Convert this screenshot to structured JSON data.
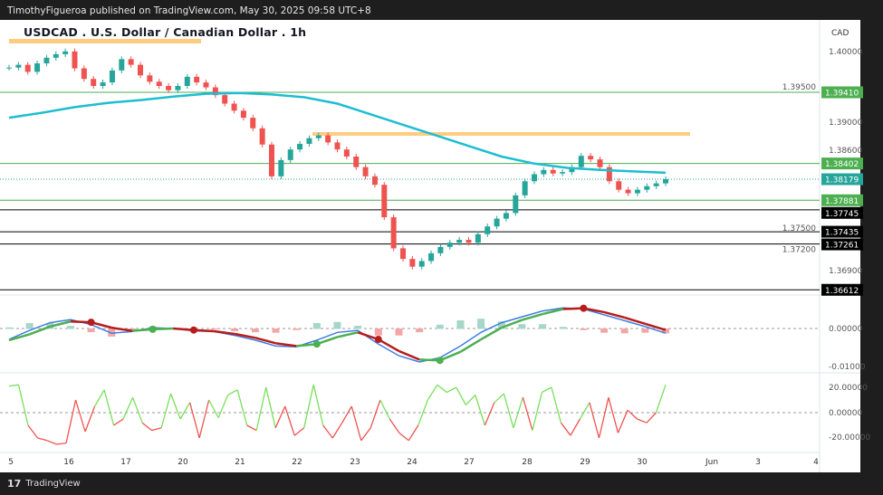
{
  "header": {
    "published": "TimothyFigueroa published on TradingView.com, May 30, 2025 09:58 UTC+8",
    "title": "USDCAD . U.S. Dollar / Canadian Dollar . 1h",
    "currency": "CAD"
  },
  "footer": {
    "brand": "TradingView"
  },
  "colors": {
    "up": "#26a69a",
    "down": "#ef5350",
    "ma": "#1ebdd1",
    "level_green": "#4caf50",
    "level_black": "#000000",
    "resistance": "#ffcc80",
    "macd": "#3f7de0",
    "signal_up": "#4caf50",
    "signal_down": "#b71c1c",
    "osc_up": "#77e05a",
    "osc_down": "#ef5350"
  },
  "chart_data": [
    {
      "type": "candlestick",
      "title": "USDCAD . U.S. Dollar / Canadian Dollar . 1h",
      "x_ticks": [
        "5",
        "16",
        "17",
        "20",
        "21",
        "22",
        "23",
        "24",
        "27",
        "28",
        "29",
        "30",
        "Jun",
        "3",
        "4"
      ],
      "y_ticks": [
        "1.40000",
        "1.39500",
        "1.39000",
        "1.38600",
        "1.37500",
        "1.37200",
        "1.36900"
      ],
      "ylim": [
        1.3635,
        1.4047
      ],
      "closes": [
        1.3976,
        1.398,
        1.397,
        1.3982,
        1.399,
        1.3995,
        1.3999,
        1.3975,
        1.396,
        1.395,
        1.3955,
        1.3972,
        1.3988,
        1.398,
        1.3965,
        1.3956,
        1.395,
        1.3944,
        1.395,
        1.3963,
        1.3955,
        1.3948,
        1.3937,
        1.3925,
        1.3915,
        1.3905,
        1.389,
        1.3867,
        1.3822,
        1.3845,
        1.386,
        1.3868,
        1.3876,
        1.388,
        1.387,
        1.386,
        1.385,
        1.3835,
        1.3822,
        1.381,
        1.3764,
        1.372,
        1.3705,
        1.3694,
        1.3702,
        1.3713,
        1.3722,
        1.3728,
        1.3732,
        1.3728,
        1.374,
        1.3751,
        1.3762,
        1.377,
        1.3795,
        1.3815,
        1.3825,
        1.3831,
        1.3826,
        1.3828,
        1.3835,
        1.3851,
        1.3846,
        1.3835,
        1.3815,
        1.3803,
        1.3798,
        1.3803,
        1.3808,
        1.3812,
        1.3818
      ],
      "ma": [
        1.3905,
        1.3912,
        1.392,
        1.3926,
        1.393,
        1.3935,
        1.3939,
        1.394,
        1.3938,
        1.3934,
        1.3925,
        1.391,
        1.3895,
        1.388,
        1.3865,
        1.385,
        1.384,
        1.3834,
        1.3831,
        1.3829,
        1.3827
      ],
      "levels_green": [
        1.3941,
        1.38402,
        1.37881
      ],
      "levels_black": [
        1.37745,
        1.37435,
        1.37261,
        1.36612
      ],
      "resistance": 1.3882,
      "last_price": "1.38179",
      "level_labels": [
        "1.39410",
        "1.38402",
        "1.38179",
        "1.37881",
        "1.37745",
        "1.37435",
        "1.37261",
        "1.36612"
      ]
    },
    {
      "type": "line",
      "title": "",
      "y_ticks": [
        "0.00000",
        "-0.01000"
      ],
      "ylim": [
        -0.0108,
        0.007
      ],
      "macd": [
        -0.0028,
        -0.0005,
        0.0015,
        0.0023,
        0.001,
        -0.0012,
        -0.0008,
        0.0002,
        0.0,
        -0.0006,
        -0.0008,
        -0.0018,
        -0.003,
        -0.0045,
        -0.0047,
        -0.003,
        -0.001,
        -0.0005,
        -0.004,
        -0.007,
        -0.0086,
        -0.0075,
        -0.0045,
        -0.001,
        0.0015,
        0.003,
        0.0045,
        0.0053,
        0.005,
        0.0035,
        0.002,
        0.0005,
        -0.0012
      ],
      "signal": [
        -0.003,
        -0.0015,
        0.0005,
        0.0018,
        0.0016,
        0.0002,
        -0.0006,
        -0.0002,
        0.0,
        -0.0004,
        -0.0007,
        -0.0014,
        -0.0024,
        -0.0038,
        -0.0045,
        -0.004,
        -0.0022,
        -0.001,
        -0.0028,
        -0.0058,
        -0.008,
        -0.0082,
        -0.006,
        -0.0028,
        0.0002,
        0.0022,
        0.0037,
        0.005,
        0.0052,
        0.0042,
        0.0028,
        0.0012,
        -0.0004
      ]
    },
    {
      "type": "line",
      "title": "",
      "y_ticks": [
        "20.00000",
        "0.00000",
        "-20.00000"
      ],
      "ylim": [
        -32,
        30
      ],
      "values": [
        21,
        22,
        -10,
        -20,
        -22,
        -25,
        -24,
        10,
        -15,
        5,
        18,
        -10,
        -5,
        12,
        -8,
        -14,
        -12,
        15,
        -5,
        8,
        -20,
        10,
        -4,
        14,
        18,
        -10,
        -14,
        20,
        -12,
        5,
        -18,
        -12,
        22,
        -10,
        -20,
        -8,
        5,
        -22,
        -12,
        10,
        -5,
        -16,
        -22,
        -10,
        10,
        22,
        16,
        20,
        6,
        14,
        -10,
        8,
        15,
        -12,
        12,
        -14,
        16,
        20,
        -8,
        -18,
        -5,
        8,
        -20,
        12,
        -16,
        2,
        -5,
        -8,
        0,
        22
      ]
    }
  ]
}
